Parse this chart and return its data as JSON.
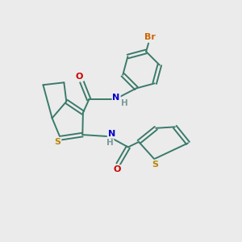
{
  "bg_color": "#ebebeb",
  "atom_colors": {
    "C": "#3a7a6a",
    "N": "#0000cc",
    "O": "#cc0000",
    "S": "#b8860b",
    "Br": "#cc6600",
    "H": "#7a9a9a"
  },
  "bond_color": "#3a7a6a",
  "figsize": [
    3.0,
    3.0
  ],
  "dpi": 100
}
